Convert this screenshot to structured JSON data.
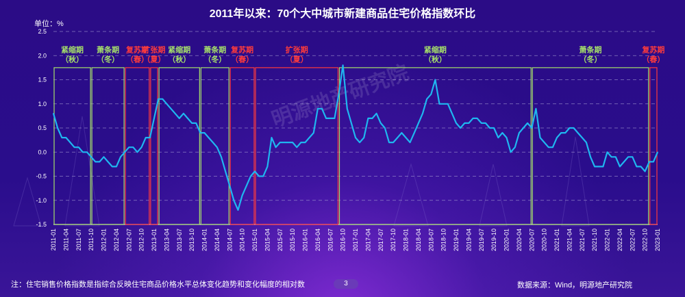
{
  "title": "2011年以来：70个大中城市新建商品住宅价格指数环比",
  "unit_label": "单位：%",
  "note": "注：住宅销售价格指数是指综合反映住宅商品价格水平总体变化趋势和变化幅度的相对数",
  "source": "数据来源：Wind，明源地产研究院",
  "page_number": "3",
  "watermark": "明源地产研究院",
  "colors": {
    "line": "#1fb7f0",
    "contraction_box": "#a6e06a",
    "recovery_box": "#ff3b3b",
    "grid": "#a9a1d6"
  },
  "chart_data": {
    "type": "line",
    "ylim": [
      -1.5,
      2.5
    ],
    "yticks": [
      "2.5",
      "2.0",
      "1.5",
      "1.0",
      "0.5",
      "0.0",
      "-0.5",
      "-1.0",
      "-1.5"
    ],
    "grid": true,
    "xtick_labels": [
      "2011-01",
      "2011-04",
      "2011-07",
      "2011-10",
      "2012-01",
      "2012-04",
      "2012-07",
      "2012-10",
      "2013-01",
      "2013-04",
      "2013-07",
      "2013-10",
      "2014-01",
      "2014-04",
      "2014-07",
      "2014-10",
      "2015-01",
      "2015-04",
      "2015-07",
      "2015-10",
      "2016-01",
      "2016-04",
      "2016-07",
      "2016-10",
      "2017-01",
      "2017-04",
      "2017-07",
      "2017-10",
      "2018-01",
      "2018-04",
      "2018-07",
      "2018-10",
      "2019-01",
      "2019-04",
      "2019-07",
      "2019-10",
      "2020-01",
      "2020-04",
      "2020-07",
      "2020-10",
      "2021-01",
      "2021-04",
      "2021-07",
      "2021-10",
      "2022-01",
      "2022-04",
      "2022-07",
      "2022-10",
      "2023-01"
    ],
    "series": [
      {
        "x_start": "2011-01",
        "x_end": "2023-01",
        "values": [
          0.8,
          0.5,
          0.3,
          0.3,
          0.2,
          0.1,
          0.1,
          0.0,
          0.0,
          -0.1,
          -0.2,
          -0.2,
          -0.1,
          -0.2,
          -0.3,
          -0.3,
          -0.1,
          0.0,
          0.1,
          0.1,
          0.0,
          0.1,
          0.3,
          0.3,
          0.7,
          1.1,
          1.1,
          1.0,
          0.9,
          0.8,
          0.7,
          0.8,
          0.7,
          0.6,
          0.6,
          0.4,
          0.4,
          0.3,
          0.2,
          0.1,
          -0.1,
          -0.4,
          -0.7,
          -1.0,
          -1.2,
          -0.9,
          -0.7,
          -0.5,
          -0.4,
          -0.5,
          -0.5,
          -0.3,
          0.3,
          0.1,
          0.2,
          0.2,
          0.2,
          0.2,
          0.1,
          0.2,
          0.2,
          0.3,
          0.4,
          0.9,
          0.9,
          0.7,
          0.7,
          0.7,
          1.2,
          1.8,
          0.9,
          0.6,
          0.3,
          0.2,
          0.3,
          0.7,
          0.7,
          0.8,
          0.6,
          0.5,
          0.2,
          0.2,
          0.3,
          0.4,
          0.3,
          0.2,
          0.4,
          0.6,
          0.8,
          1.1,
          1.2,
          1.5,
          1.0,
          1.0,
          1.0,
          0.8,
          0.6,
          0.5,
          0.6,
          0.6,
          0.7,
          0.7,
          0.6,
          0.6,
          0.5,
          0.5,
          0.3,
          0.4,
          0.3,
          0.0,
          0.1,
          0.4,
          0.5,
          0.6,
          0.5,
          0.9,
          0.3,
          0.2,
          0.1,
          0.1,
          0.3,
          0.4,
          0.4,
          0.5,
          0.5,
          0.4,
          0.3,
          0.2,
          -0.1,
          -0.3,
          -0.3,
          -0.3,
          0.0,
          -0.1,
          -0.1,
          -0.3,
          -0.2,
          -0.1,
          -0.1,
          -0.3,
          -0.3,
          -0.4,
          -0.2,
          -0.2,
          0.0
        ]
      }
    ],
    "phases": [
      {
        "label": "紧缩期",
        "season": "（秋）",
        "kind": "contraction",
        "start": "2011-01",
        "end": "2011-10"
      },
      {
        "label": "萧条期",
        "season": "（冬）",
        "kind": "contraction",
        "start": "2011-10",
        "end": "2012-06"
      },
      {
        "label": "复苏期",
        "season": "（春）",
        "kind": "recovery",
        "start": "2012-06",
        "end": "2012-12"
      },
      {
        "label": "扩张期",
        "season": "（夏）",
        "kind": "recovery",
        "start": "2012-12",
        "end": "2013-02"
      },
      {
        "label": "紧缩期",
        "season": "（秋）",
        "kind": "contraction",
        "start": "2013-02",
        "end": "2013-12"
      },
      {
        "label": "萧条期",
        "season": "（冬）",
        "kind": "contraction",
        "start": "2013-12",
        "end": "2014-07"
      },
      {
        "label": "复苏期",
        "season": "（春）",
        "kind": "recovery",
        "start": "2014-07",
        "end": "2015-01"
      },
      {
        "label": "扩张期",
        "season": "（夏）",
        "kind": "recovery",
        "start": "2015-01",
        "end": "2016-09"
      },
      {
        "label": "紧缩期",
        "season": "（秋）",
        "kind": "contraction",
        "start": "2016-09",
        "end": "2020-07"
      },
      {
        "label": "萧条期",
        "season": "（冬）",
        "kind": "contraction",
        "start": "2020-07",
        "end": "2022-11"
      },
      {
        "label": "复苏期",
        "season": "（春）",
        "kind": "recovery",
        "start": "2022-11",
        "end": "2023-01"
      }
    ]
  }
}
